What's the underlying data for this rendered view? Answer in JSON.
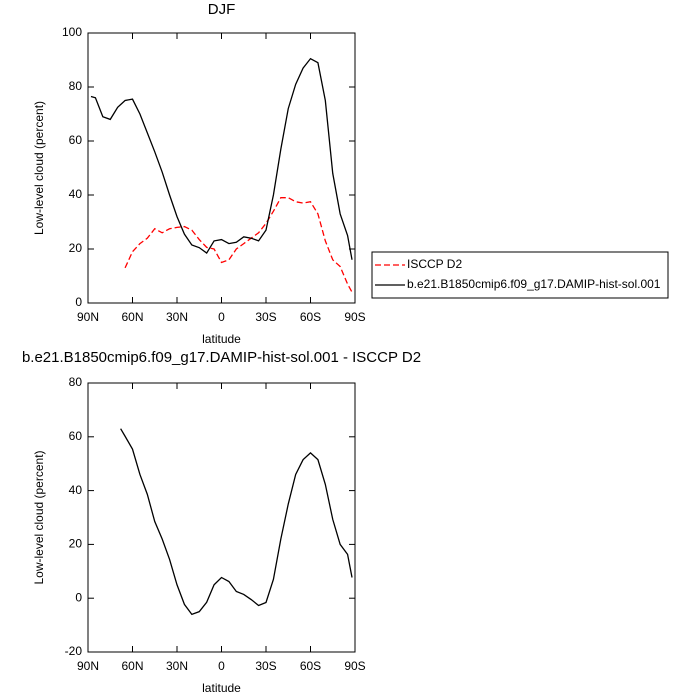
{
  "chart_data": [
    {
      "type": "line",
      "title": "DJF",
      "x_label": "latitude",
      "y_label": "Low-level cloud (percent)",
      "x": [
        88,
        85,
        80,
        75,
        70,
        65,
        60,
        55,
        50,
        45,
        40,
        35,
        30,
        25,
        20,
        15,
        10,
        5,
        0,
        -5,
        -10,
        -15,
        -20,
        -25,
        -30,
        -35,
        -40,
        -45,
        -50,
        -55,
        -60,
        -65,
        -70,
        -75,
        -80,
        -85,
        -88
      ],
      "series": [
        {
          "name": "ISCCP D2",
          "color": "#ff0000",
          "dash": true,
          "values": [
            null,
            null,
            null,
            null,
            null,
            13,
            19,
            22,
            24,
            27.5,
            26,
            27.5,
            28,
            28.3,
            27,
            23.5,
            20.6,
            20,
            15,
            16,
            20,
            22,
            24,
            26,
            29.5,
            34,
            39,
            39,
            37.5,
            37,
            37.5,
            33,
            23,
            16,
            13.5,
            7,
            4
          ]
        },
        {
          "name": "b.e21.B1850cmip6.f09_g17.DAMIP-hist-sol.001",
          "color": "#000000",
          "dash": false,
          "values": [
            76.5,
            76,
            69,
            68,
            72.5,
            75,
            75.5,
            70,
            63,
            56,
            48.5,
            40,
            32,
            25.5,
            21.5,
            20.5,
            18.5,
            23,
            23.5,
            22,
            22.5,
            24.5,
            24,
            23,
            27,
            40,
            57,
            72,
            81,
            87,
            90.5,
            89,
            75,
            48,
            33,
            25,
            16
          ]
        }
      ],
      "xlim": [
        90,
        -90
      ],
      "xticks": [
        {
          "value": 90,
          "label": "90N"
        },
        {
          "value": 60,
          "label": "60N"
        },
        {
          "value": 30,
          "label": "30N"
        },
        0,
        {
          "value": -30,
          "label": "30S"
        },
        {
          "value": -60,
          "label": "60S"
        },
        {
          "value": -90,
          "label": "90S"
        }
      ],
      "ylim": [
        0,
        100
      ],
      "yticks": [
        0,
        20,
        40,
        60,
        80,
        100
      ],
      "legend": "right"
    },
    {
      "type": "line",
      "title": "b.e21.B1850cmip6.f09_g17.DAMIP-hist-sol.001 - ISCCP D2",
      "x_label": "latitude",
      "y_label": "Low-level cloud (percent)",
      "x": [
        88,
        85,
        80,
        75,
        70,
        68,
        65,
        60,
        55,
        50,
        45,
        40,
        35,
        30,
        25,
        20,
        15,
        10,
        5,
        0,
        -5,
        -10,
        -15,
        -20,
        -25,
        -30,
        -35,
        -40,
        -45,
        -50,
        -55,
        -60,
        -65,
        -70,
        -75,
        -80,
        -85,
        -88
      ],
      "values": [
        null,
        null,
        null,
        null,
        null,
        63,
        60.2,
        55.4,
        46,
        38.6,
        28.5,
        22,
        14.4,
        5,
        -2.3,
        -6,
        -5,
        -1.5,
        5,
        7.7,
        6.2,
        2.5,
        1.4,
        -0.5,
        -2.7,
        -1.6,
        7,
        22,
        35,
        46,
        51.5,
        54,
        51.5,
        42.3,
        29.3,
        20,
        16.3,
        7.7
      ],
      "color": "#000000",
      "xlim": [
        90,
        -90
      ],
      "xticks": [
        {
          "value": 90,
          "label": "90N"
        },
        {
          "value": 60,
          "label": "60N"
        },
        {
          "value": 30,
          "label": "30N"
        },
        0,
        {
          "value": -30,
          "label": "30S"
        },
        {
          "value": -60,
          "label": "60S"
        },
        {
          "value": -90,
          "label": "90S"
        }
      ],
      "ylim": [
        -20,
        80
      ],
      "yticks": [
        -20,
        0,
        20,
        40,
        60,
        80
      ]
    }
  ]
}
